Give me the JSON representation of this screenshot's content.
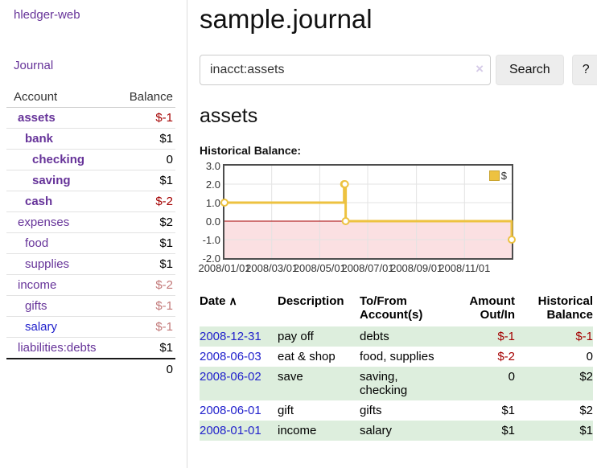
{
  "colors": {
    "link_purple": "#663399",
    "link_blue": "#2222cc",
    "negative_strong": "#a40000",
    "negative_weak": "#c27878",
    "row_green": "#ddeedd",
    "button_bg": "#ededed",
    "series_gold": "#edc240",
    "border_gray": "#dddddd"
  },
  "sidebar": {
    "app_title": "hledger-web",
    "journal_link": "Journal",
    "accounts_header": {
      "account": "Account",
      "balance": "Balance"
    },
    "accounts": [
      {
        "name": "assets",
        "balance": "$-1",
        "indent": 0,
        "bold": true,
        "neg": "strong"
      },
      {
        "name": "bank",
        "balance": "$1",
        "indent": 1,
        "bold": true
      },
      {
        "name": "checking",
        "balance": "0",
        "indent": 2,
        "bold": true
      },
      {
        "name": "saving",
        "balance": "$1",
        "indent": 2,
        "bold": true
      },
      {
        "name": "cash",
        "balance": "$-2",
        "indent": 1,
        "bold": true,
        "neg": "strong"
      },
      {
        "name": "expenses",
        "balance": "$2",
        "indent": 0
      },
      {
        "name": "food",
        "balance": "$1",
        "indent": 1
      },
      {
        "name": "supplies",
        "balance": "$1",
        "indent": 1
      },
      {
        "name": "income",
        "balance": "$-2",
        "indent": 0,
        "neg": "weak"
      },
      {
        "name": "gifts",
        "balance": "$-1",
        "indent": 1,
        "neg": "weak"
      },
      {
        "name": "salary",
        "balance": "$-1",
        "indent": 1,
        "neg": "weak",
        "link_color": "blue"
      },
      {
        "name": "liabilities:debts",
        "balance": "$1",
        "indent": 0
      }
    ],
    "total": "0"
  },
  "main": {
    "title": "sample.journal",
    "search": {
      "value": "inacct:assets",
      "clear_icon": "×",
      "button_label": "Search",
      "help_label": "?"
    },
    "section_heading": "assets"
  },
  "chart_data": {
    "type": "line",
    "style": "step",
    "title": "Historical Balance:",
    "x_range": [
      "2008-01-01",
      "2008-12-31"
    ],
    "ylim": [
      -2.0,
      3.0
    ],
    "y_ticks": [
      "3.0",
      "2.0",
      "1.0",
      "0.0",
      "-1.0",
      "-2.0"
    ],
    "x_ticks": [
      "2008/01/01",
      "2008/03/01",
      "2008/05/01",
      "2008/07/01",
      "2008/09/01",
      "2008/11/01"
    ],
    "grid": true,
    "legend_position": "top-right",
    "series": [
      {
        "name": "$",
        "color": "#edc240",
        "points": [
          [
            "2008-01-01",
            1
          ],
          [
            "2008-06-01",
            2
          ],
          [
            "2008-06-02",
            2
          ],
          [
            "2008-06-03",
            0
          ],
          [
            "2008-12-31",
            -1
          ]
        ]
      }
    ],
    "negative_region_fill": "#fbe0e2",
    "zero_line_color": "#a40000",
    "gridline_color": "#e3e3e3"
  },
  "register": {
    "headers": {
      "date": "Date",
      "sort_icon": "∧",
      "description": "Description",
      "accounts": "To/From Account(s)",
      "amount": "Amount Out/In",
      "balance": "Historical Balance"
    },
    "rows": [
      {
        "date": "2008-12-31",
        "description": "pay off",
        "accounts": "debts",
        "amount": "$-1",
        "amount_neg": true,
        "balance": "$-1",
        "balance_neg": true
      },
      {
        "date": "2008-06-03",
        "description": "eat & shop",
        "accounts": "food, supplies",
        "amount": "$-2",
        "amount_neg": true,
        "balance": "0",
        "balance_neg": false
      },
      {
        "date": "2008-06-02",
        "description": "save",
        "accounts": "saving, checking",
        "amount": "0",
        "amount_neg": false,
        "balance": "$2",
        "balance_neg": false
      },
      {
        "date": "2008-06-01",
        "description": "gift",
        "accounts": "gifts",
        "amount": "$1",
        "amount_neg": false,
        "balance": "$2",
        "balance_neg": false
      },
      {
        "date": "2008-01-01",
        "description": "income",
        "accounts": "salary",
        "amount": "$1",
        "amount_neg": false,
        "balance": "$1",
        "balance_neg": false
      }
    ]
  }
}
